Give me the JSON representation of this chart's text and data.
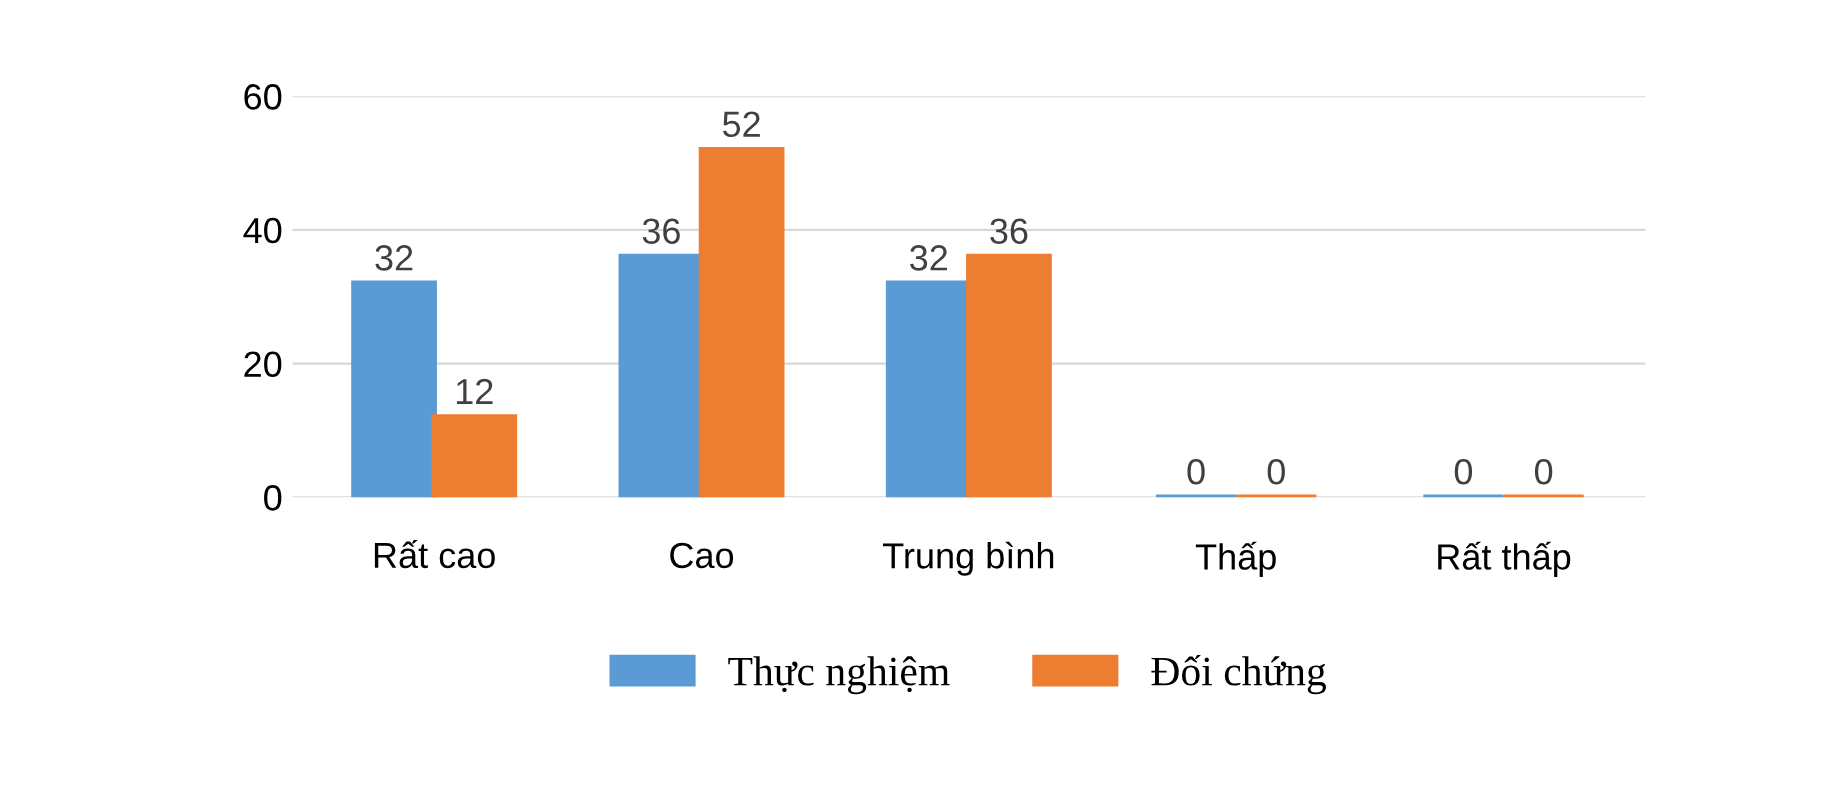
{
  "chart_data": {
    "type": "bar",
    "categories": [
      "Rất cao",
      "Cao",
      "Trung bình",
      "Thấp",
      "Rất thấp"
    ],
    "series": [
      {
        "name": "Thực nghiệm",
        "color": "#5b9bd5",
        "values": [
          32,
          36,
          32,
          0,
          0
        ]
      },
      {
        "name": "Đối chứng",
        "color": "#ed7d31",
        "values": [
          12,
          52,
          36,
          0,
          0
        ]
      }
    ],
    "ylim": [
      0,
      60
    ],
    "yticks": [
      0,
      20,
      40,
      60
    ],
    "grid": "y",
    "legend": "bottom",
    "data_labels": true
  }
}
